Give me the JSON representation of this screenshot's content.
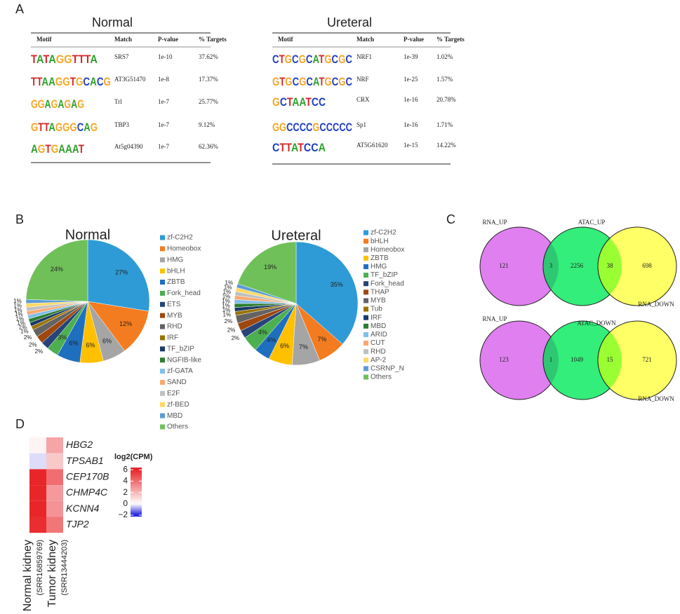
{
  "panels": [
    "A",
    "B",
    "C",
    "D"
  ],
  "motif_tables": [
    {
      "title": "Normal",
      "header": [
        "Motif",
        "Match",
        "P-value",
        "% Targets"
      ],
      "rows": [
        {
          "motif": "TATAGGTTTA",
          "match": "SRS7",
          "pvalue": "1e-10",
          "targets": "37.62%"
        },
        {
          "motif": "TTAAGGTGCACG",
          "match": "AT3G51470",
          "pvalue": "1e-8",
          "targets": "17.37%"
        },
        {
          "motif": "GGAGAGAG",
          "match": "Trl",
          "pvalue": "1e-7",
          "targets": "25.77%"
        },
        {
          "motif": "GTTAGGGCAG",
          "match": "TBP3",
          "pvalue": "1e-7",
          "targets": "9.12%"
        },
        {
          "motif": "AGTGAAAT",
          "match": "At5g04390",
          "pvalue": "1e-7",
          "targets": "62.36%"
        }
      ]
    },
    {
      "title": "Ureteral",
      "header": [
        "Motif",
        "Match",
        "P-value",
        "% Targets"
      ],
      "rows": [
        {
          "motif": "CTGCGCATGCGC",
          "match": "NRF1",
          "pvalue": "1e-39",
          "targets": "1.02%"
        },
        {
          "motif": "GTGCGCATGCGC",
          "match": "NRF",
          "pvalue": "1e-25",
          "targets": "1.57%"
        },
        {
          "motif": "GCTAATCC",
          "match": "CRX",
          "pvalue": "1e-16",
          "targets": "20.78%"
        },
        {
          "motif": "GGCCCCGCCCCC",
          "match": "Sp1",
          "pvalue": "1e-16",
          "targets": "1.71%"
        },
        {
          "motif": "CTTATCCA",
          "match": "AT5G61620",
          "pvalue": "1e-15",
          "targets": "14.22%"
        }
      ]
    }
  ],
  "venn": [
    {
      "sets": [
        "RNA_UP",
        "ATAC_UP",
        "RNA_DOWN"
      ],
      "counts": [
        121,
        3,
        2256,
        38,
        698
      ]
    },
    {
      "sets": [
        "RNA_UP",
        "ATAC_DOWN",
        "RNA_DOWN"
      ],
      "counts": [
        123,
        1,
        1049,
        15,
        721
      ]
    }
  ],
  "chart_data": [
    {
      "type": "pie",
      "title": "Normal",
      "categories": [
        "zf-C2H2",
        "Homeobox",
        "HMG",
        "bHLH",
        "ZBTB",
        "Fork_head",
        "ETS",
        "MYB",
        "RHD",
        "IRF",
        "TF_bZIP",
        "NGFIB-like",
        "zf-GATA",
        "SAND",
        "E2F",
        "zf-BED",
        "MBD",
        "Others"
      ],
      "values": [
        27,
        12,
        6,
        6,
        6,
        3,
        2,
        2,
        2,
        1,
        1,
        1,
        1,
        1,
        1,
        1,
        1,
        24
      ],
      "value_labels": [
        "27%",
        "12%",
        "6%",
        "6%",
        "6%",
        "3%",
        "2%",
        "2%",
        "2%",
        "1%",
        "1%",
        "1%",
        "1%",
        "1%",
        "1%",
        "1%",
        "1%",
        "24%"
      ],
      "colors": [
        "#2e9bd6",
        "#f47c20",
        "#a5a5a5",
        "#ffc000",
        "#1f6fbf",
        "#4caf50",
        "#264478",
        "#9e480e",
        "#636363",
        "#997300",
        "#1b3a66",
        "#2e7d32",
        "#7fbfe8",
        "#f9a870",
        "#c0c0c0",
        "#ffd966",
        "#5b9bd5",
        "#70c05a"
      ]
    },
    {
      "type": "pie",
      "title": "Ureteral",
      "categories": [
        "zf-C2H2",
        "bHLH",
        "Homeobox",
        "ZBTB",
        "HMG",
        "TF_bZIP",
        "Fork_head",
        "THAP",
        "MYB",
        "Tub",
        "IRF",
        "MBD",
        "ARID",
        "CUT",
        "RHD",
        "AP-2",
        "CSRNP_N",
        "Others"
      ],
      "values": [
        35,
        7,
        7,
        6,
        4,
        4,
        2,
        2,
        2,
        1,
        1,
        1,
        1,
        1,
        1,
        1,
        1,
        19
      ],
      "value_labels": [
        "35%",
        "7%",
        "7%",
        "6%",
        "4%",
        "4%",
        "2%",
        "2%",
        "2%",
        "1%",
        "1%",
        "1%",
        "1%",
        "1%",
        "1%",
        "1%",
        "1%",
        "19%"
      ],
      "colors": [
        "#2e9bd6",
        "#f47c20",
        "#a5a5a5",
        "#ffc000",
        "#1f6fbf",
        "#4caf50",
        "#264478",
        "#9e480e",
        "#636363",
        "#997300",
        "#1b3a66",
        "#2e7d32",
        "#7fbfe8",
        "#f9a870",
        "#c0c0c0",
        "#ffd966",
        "#5b9bd5",
        "#70c05a"
      ]
    },
    {
      "type": "heatmap",
      "rows": [
        "HBG2",
        "TPSAB1",
        "CEP170B",
        "CHMP4C",
        "KCNN4",
        "TJP2"
      ],
      "columns": [
        {
          "name": "Normal kidney",
          "id": "(SRR16859769)"
        },
        {
          "name": "Tumor kidney",
          "id": "(SRR13444203)"
        }
      ],
      "values": [
        [
          0.3,
          2.5
        ],
        [
          -0.3,
          1.5
        ],
        [
          6,
          4
        ],
        [
          6,
          2.8
        ],
        [
          6,
          3
        ],
        [
          5.8,
          3.8
        ]
      ],
      "colorbar_title": "log2(CPM)",
      "clim": [
        -2.25,
        6.4
      ],
      "cticks": [
        6,
        4,
        2,
        0,
        {
          "value": -2,
          "label": "−2"
        }
      ]
    }
  ]
}
